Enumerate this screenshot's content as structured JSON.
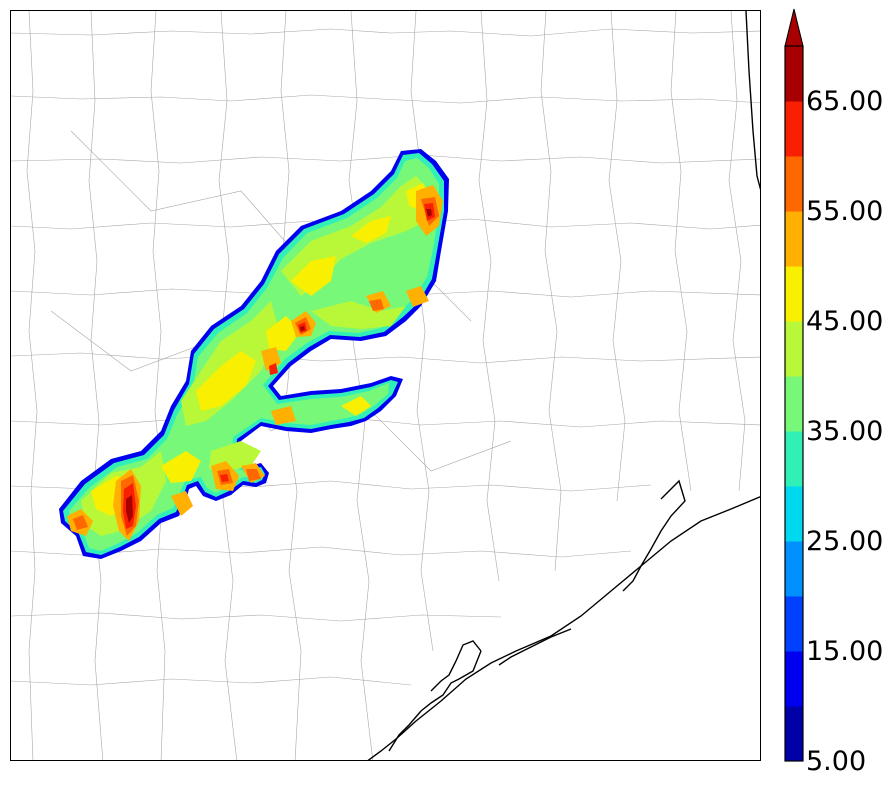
{
  "map": {
    "field": "reflectivity",
    "coastline_color": "#000000",
    "county_border_color": "#a0a0a0"
  },
  "colorbar": {
    "levels": [
      5,
      10,
      15,
      20,
      25,
      30,
      35,
      40,
      45,
      50,
      55,
      60,
      65,
      70
    ],
    "colors": [
      "#0000a8",
      "#0000f0",
      "#0040ff",
      "#0090ff",
      "#00d8f0",
      "#30f0b8",
      "#78f878",
      "#b8f838",
      "#f8f000",
      "#ffb000",
      "#ff6800",
      "#f82000",
      "#a80000"
    ],
    "extend": "max",
    "tick_labels": [
      "5.00",
      "15.00",
      "25.00",
      "35.00",
      "45.00",
      "55.00",
      "65.00"
    ]
  }
}
